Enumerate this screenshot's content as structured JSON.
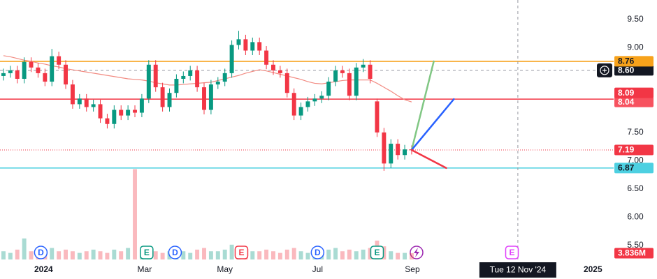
{
  "chart_data": {
    "type": "candlestick",
    "categories": [
      null,
      null,
      null,
      null,
      null,
      null,
      null,
      null,
      null,
      null,
      null,
      null,
      null,
      null,
      null,
      null,
      null,
      null,
      null,
      null,
      null,
      null,
      null,
      null,
      null,
      null,
      null,
      null,
      null,
      null,
      null,
      null,
      null,
      null,
      null,
      null,
      null,
      null,
      null,
      null,
      null,
      null,
      null,
      null,
      null,
      null,
      null,
      null,
      null,
      null,
      null,
      null,
      null,
      null,
      null,
      null,
      null,
      null,
      null,
      null
    ],
    "open": [
      8.5,
      8.55,
      8.6,
      8.45,
      8.75,
      8.65,
      8.55,
      8.4,
      8.85,
      8.7,
      8.35,
      8.0,
      8.1,
      7.95,
      8.0,
      7.75,
      7.65,
      7.9,
      7.8,
      7.9,
      7.85,
      8.1,
      8.7,
      8.3,
      7.95,
      8.2,
      8.45,
      8.5,
      8.6,
      8.3,
      7.9,
      8.35,
      8.4,
      8.55,
      9.05,
      9.15,
      8.95,
      9.1,
      8.95,
      8.7,
      8.6,
      8.55,
      8.2,
      7.8,
      7.95,
      8.05,
      8.1,
      8.15,
      8.4,
      8.6,
      8.55,
      8.15,
      8.65,
      8.7,
      8.05,
      7.5,
      6.95,
      7.3,
      7.1,
      7.2
    ],
    "high": [
      8.63,
      8.68,
      8.68,
      8.83,
      8.83,
      8.73,
      8.63,
      8.98,
      8.93,
      8.78,
      8.43,
      8.18,
      8.18,
      8.08,
      8.08,
      7.83,
      7.98,
      7.98,
      7.98,
      7.98,
      8.18,
      8.78,
      8.78,
      8.38,
      8.28,
      8.53,
      8.58,
      8.68,
      8.68,
      8.38,
      8.43,
      8.48,
      8.63,
      9.13,
      9.3,
      9.23,
      9.18,
      9.18,
      9.03,
      8.78,
      8.68,
      8.63,
      8.28,
      8.03,
      8.13,
      8.18,
      8.23,
      8.48,
      8.68,
      8.68,
      8.63,
      8.73,
      8.8,
      8.78,
      8.1,
      7.58,
      7.38,
      7.38,
      7.28,
      7.27
    ],
    "low": [
      8.42,
      8.47,
      8.37,
      8.37,
      8.57,
      8.47,
      8.32,
      8.32,
      8.62,
      8.27,
      7.92,
      7.92,
      7.87,
      7.87,
      7.67,
      7.57,
      7.57,
      7.72,
      7.72,
      7.77,
      7.77,
      8.02,
      8.22,
      7.87,
      7.87,
      8.12,
      8.37,
      8.42,
      8.22,
      7.82,
      7.82,
      8.27,
      8.32,
      8.47,
      8.97,
      8.87,
      8.87,
      8.87,
      8.62,
      8.52,
      8.47,
      8.12,
      7.72,
      7.72,
      7.87,
      7.97,
      8.02,
      8.07,
      8.32,
      8.47,
      8.07,
      8.07,
      8.57,
      8.37,
      7.42,
      6.82,
      6.87,
      7.02,
      7.02,
      7.11
    ],
    "close": [
      8.55,
      8.6,
      8.45,
      8.75,
      8.65,
      8.55,
      8.4,
      8.85,
      8.7,
      8.35,
      8.0,
      8.1,
      7.95,
      8.0,
      7.75,
      7.65,
      7.9,
      7.8,
      7.9,
      7.85,
      8.1,
      8.7,
      8.3,
      7.95,
      8.2,
      8.45,
      8.5,
      8.6,
      8.3,
      7.9,
      8.35,
      8.4,
      8.55,
      9.05,
      9.15,
      8.95,
      9.1,
      8.95,
      8.7,
      8.6,
      8.55,
      8.2,
      7.8,
      7.95,
      8.05,
      8.1,
      8.15,
      8.4,
      8.6,
      8.55,
      8.15,
      8.65,
      8.7,
      8.45,
      7.5,
      6.95,
      7.3,
      7.1,
      7.2,
      7.19
    ],
    "moving_average": [
      8.86,
      8.84,
      8.81,
      8.78,
      8.76,
      8.73,
      8.71,
      8.68,
      8.66,
      8.63,
      8.61,
      8.59,
      8.57,
      8.55,
      8.53,
      8.51,
      8.49,
      8.47,
      8.45,
      8.44,
      8.43,
      8.41,
      8.38,
      8.36,
      8.34,
      8.34,
      8.35,
      8.36,
      8.37,
      8.38,
      8.39,
      8.42,
      8.45,
      8.48,
      8.51,
      8.55,
      8.58,
      8.61,
      8.59,
      8.56,
      8.53,
      8.5,
      8.47,
      8.44,
      8.4,
      8.37,
      8.36,
      8.38,
      8.4,
      8.42,
      8.43,
      8.43,
      8.43,
      8.43,
      8.37,
      8.3,
      8.23,
      8.15,
      8.08,
      8.04
    ],
    "ma_color": "#f28b82",
    "volume": [
      5,
      4,
      6,
      12.8,
      5,
      4,
      5,
      7,
      5,
      6,
      5,
      4,
      5,
      6,
      5,
      4,
      6,
      5,
      7,
      55,
      6,
      8,
      5,
      4,
      5,
      6,
      5,
      4,
      6,
      7,
      5,
      5,
      6,
      9,
      8,
      6,
      5,
      5,
      6,
      5,
      4,
      6,
      7,
      5,
      4,
      5,
      5,
      6,
      7,
      5,
      6,
      5,
      6,
      7,
      11.5,
      8,
      5,
      4,
      4,
      3.836
    ],
    "volume_lim": [
      0,
      158
    ],
    "volume_label": "3.836M",
    "up_color": "#089981",
    "down_color": "#f23645",
    "ylim": [
      5.25,
      9.846
    ],
    "yticks": [
      {
        "value": 5.5,
        "label": "5.50"
      },
      {
        "value": 6.0,
        "label": "6.00"
      },
      {
        "value": 6.5,
        "label": "6.50"
      },
      {
        "value": 7.0,
        "label": "7.00"
      },
      {
        "value": 7.5,
        "label": "7.50"
      },
      {
        "value": 9.0,
        "label": "9.00"
      },
      {
        "value": 9.5,
        "label": "9.50"
      }
    ],
    "xlim": [
      -0.5,
      88.2
    ],
    "xticks": [
      {
        "value": 5.8,
        "label": "2024"
      },
      {
        "value": 20.4,
        "label": "Mar"
      },
      {
        "value": 32.0,
        "label": "May"
      },
      {
        "value": 45.4,
        "label": "Jul"
      },
      {
        "value": 59.1,
        "label": "Sep"
      },
      {
        "value": 85.2,
        "label": "2025"
      }
    ],
    "grid": false,
    "levels": [
      {
        "value": 8.76,
        "label": "8.76",
        "color": "#f7a21b",
        "text_color": "#131722",
        "line": "solid"
      },
      {
        "value": 8.09,
        "label": "8.09",
        "color": "#f23645",
        "text_color": "#ffffff",
        "line": "solid"
      },
      {
        "value": 8.04,
        "label": "8.04",
        "color": "#f7525f",
        "text_color": "#ffffff",
        "line": "none"
      },
      {
        "value": 7.19,
        "label": "7.19",
        "color": "#f23645",
        "text_color": "#ffffff",
        "line": "dotted"
      },
      {
        "value": 6.87,
        "label": "6.87",
        "color": "#4dd0e1",
        "text_color": "#131722",
        "line": "solid"
      }
    ],
    "projections": [
      {
        "end": 62.2,
        "value": 8.76,
        "color": "#81c784"
      },
      {
        "end": 65.1,
        "value": 8.09,
        "color": "#2962ff"
      },
      {
        "end": 64.0,
        "value": 6.87,
        "color": "#f23645"
      }
    ],
    "events": [
      {
        "position": 5.4,
        "label": "D",
        "color": "#2962ff"
      },
      {
        "position": 20.7,
        "label": "E",
        "color": "#089981"
      },
      {
        "position": 24.8,
        "label": "D",
        "color": "#2962ff"
      },
      {
        "position": 34.4,
        "label": "E",
        "color": "#f23645"
      },
      {
        "position": 45.4,
        "label": "D",
        "color": "#2962ff"
      },
      {
        "position": 54.0,
        "label": "E",
        "color": "#089981"
      },
      {
        "position": 73.5,
        "label": "E",
        "color": "#e040fb"
      }
    ],
    "crosshair": {
      "position": 74.35,
      "value": 8.6,
      "value_label": "8.60",
      "date_label": "Tue 12 Nov '24"
    }
  }
}
